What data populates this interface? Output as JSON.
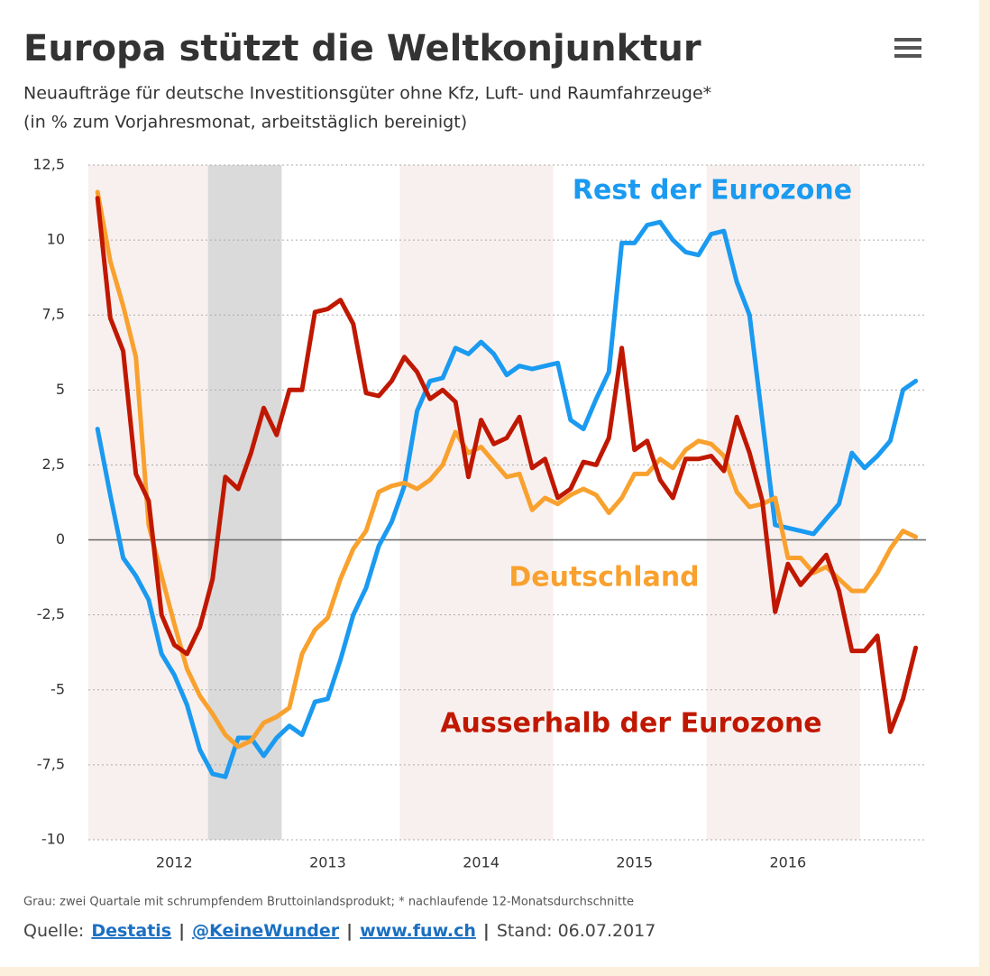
{
  "chart_data": {
    "type": "line",
    "title": "Europa stützt die Weltkonjunktur",
    "subtitle": [
      "Neuaufträge für deutsche Investitionsgüter ohne Kfz, Luft- und Raumfahrzeuge*",
      "(in % zum Vorjahresmonat, arbeitstäglich bereinigt)"
    ],
    "x": [
      2012,
      2012.083,
      2012.167,
      2012.25,
      2012.333,
      2012.417,
      2012.5,
      2012.583,
      2012.667,
      2012.75,
      2012.833,
      2012.917,
      2013,
      2013.083,
      2013.167,
      2013.25,
      2013.333,
      2013.417,
      2013.5,
      2013.583,
      2013.667,
      2013.75,
      2013.833,
      2013.917,
      2014,
      2014.083,
      2014.167,
      2014.25,
      2014.333,
      2014.417,
      2014.5,
      2014.583,
      2014.667,
      2014.75,
      2014.833,
      2014.917,
      2015,
      2015.083,
      2015.167,
      2015.25,
      2015.333,
      2015.417,
      2015.5,
      2015.583,
      2015.667,
      2015.75,
      2015.833,
      2015.917,
      2016,
      2016.083,
      2016.167,
      2016.25,
      2016.333,
      2016.417,
      2016.5,
      2016.583,
      2016.667,
      2016.75,
      2016.833,
      2016.917,
      2017,
      2017.083,
      2017.167,
      2017.25,
      2017.333
    ],
    "series": [
      {
        "name": "Rest der Eurozone",
        "color": "#1a9af0",
        "values": [
          3.7,
          1.5,
          -0.6,
          -1.2,
          -2.0,
          -3.8,
          -4.5,
          -5.5,
          -7.0,
          -7.8,
          -7.9,
          -6.6,
          -6.6,
          -7.2,
          -6.6,
          -6.2,
          -6.5,
          -5.4,
          -5.3,
          -4.0,
          -2.5,
          -1.6,
          -0.2,
          0.6,
          1.8,
          4.3,
          5.3,
          5.4,
          6.4,
          6.2,
          6.6,
          6.2,
          5.5,
          5.8,
          5.7,
          5.8,
          5.9,
          4.0,
          3.7,
          4.7,
          5.6,
          9.9,
          9.9,
          10.5,
          10.6,
          10.0,
          9.6,
          9.5,
          10.2,
          10.3,
          8.6,
          7.5,
          4.0,
          0.5,
          0.4,
          0.3,
          0.2,
          0.7,
          1.2,
          2.9,
          2.4,
          2.8,
          3.3,
          5.0,
          5.3
        ]
      },
      {
        "name": "Deutschland",
        "color": "#f9a12e",
        "values": [
          11.6,
          9.3,
          7.8,
          6.1,
          0.5,
          -1.2,
          -2.8,
          -4.3,
          -5.2,
          -5.8,
          -6.5,
          -6.9,
          -6.7,
          -6.1,
          -5.9,
          -5.6,
          -3.8,
          -3.0,
          -2.6,
          -1.3,
          -0.3,
          0.3,
          1.6,
          1.8,
          1.9,
          1.7,
          2.0,
          2.5,
          3.6,
          2.9,
          3.1,
          2.6,
          2.1,
          2.2,
          1.0,
          1.4,
          1.2,
          1.5,
          1.7,
          1.5,
          0.9,
          1.4,
          2.2,
          2.2,
          2.7,
          2.4,
          3.0,
          3.3,
          3.2,
          2.8,
          1.6,
          1.1,
          1.2,
          1.4,
          -0.6,
          -0.6,
          -1.1,
          -0.9,
          -1.3,
          -1.7,
          -1.7,
          -1.1,
          -0.3,
          0.3,
          0.1
        ]
      },
      {
        "name": "Ausserhalb der Eurozone",
        "color": "#c01800",
        "values": [
          11.4,
          7.4,
          6.3,
          2.2,
          1.3,
          -2.5,
          -3.5,
          -3.8,
          -2.9,
          -1.3,
          2.1,
          1.7,
          2.9,
          4.4,
          3.5,
          5.0,
          5.0,
          7.6,
          7.7,
          8.0,
          7.2,
          4.9,
          4.8,
          5.3,
          6.1,
          5.6,
          4.7,
          5.0,
          4.6,
          2.1,
          4.0,
          3.2,
          3.4,
          4.1,
          2.4,
          2.7,
          1.4,
          1.7,
          2.6,
          2.5,
          3.4,
          6.4,
          3.0,
          3.3,
          2.0,
          1.4,
          2.7,
          2.7,
          2.8,
          2.3,
          4.1,
          2.9,
          1.3,
          -2.4,
          -0.8,
          -1.5,
          -1.0,
          -0.5,
          -1.7,
          -3.7,
          -3.7,
          -3.2,
          -6.4,
          -5.3,
          -3.6
        ]
      }
    ],
    "xlim": [
      2011.94,
      2017.4
    ],
    "xticks": [
      {
        "value": 2012.5,
        "label": "2012"
      },
      {
        "value": 2013.5,
        "label": "2013"
      },
      {
        "value": 2014.5,
        "label": "2014"
      },
      {
        "value": 2015.5,
        "label": "2015"
      },
      {
        "value": 2016.5,
        "label": "2016"
      }
    ],
    "ylim": [
      -10,
      12.5
    ],
    "yticks": [
      -10,
      {
        "value": -7.5,
        "label": "-7,5"
      },
      -5,
      {
        "value": -2.5,
        "label": "-2,5"
      },
      0,
      {
        "value": 2.5,
        "label": "2,5"
      },
      5,
      {
        "value": 7.5,
        "label": "7,5"
      },
      10,
      {
        "value": 12.5,
        "label": "12,5"
      }
    ],
    "grid": true,
    "bands": [
      {
        "from": 2011.94,
        "to": 2012.97,
        "color": "#f8f0ef"
      },
      {
        "from": 2013.97,
        "to": 2014.97,
        "color": "#f8f0ef"
      },
      {
        "from": 2015.97,
        "to": 2016.97,
        "color": "#f8f0ef"
      },
      {
        "from": 2012.72,
        "to": 2013.2,
        "color": "#dadada"
      }
    ],
    "footnote": "Grau: zwei Quartale mit schrumpfendem Bruttoinlandsprodukt; * nachlaufende 12-Monatsdurchschnitte",
    "source": {
      "prefix": "Quelle:",
      "links": [
        "Destatis",
        "@KeineWunder",
        "www.fuw.ch"
      ],
      "separator": "|",
      "stand": "Stand: 06.07.2017"
    }
  }
}
